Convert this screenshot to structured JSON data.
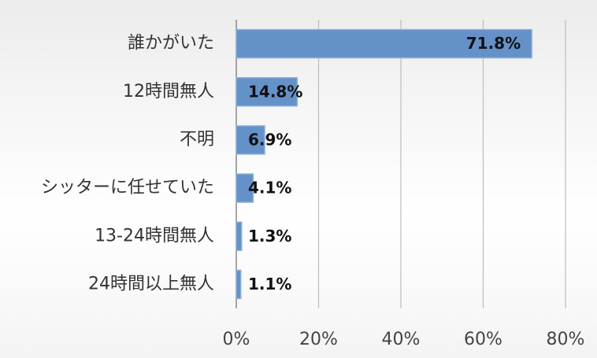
{
  "chart_data": {
    "type": "barh",
    "categories": [
      "誰かがいた",
      "12時間無人",
      "不明",
      "シッターに任せていた",
      "13-24時間無人",
      "24時間以上無人"
    ],
    "values": [
      71.8,
      14.8,
      6.9,
      4.1,
      1.3,
      1.1
    ],
    "value_labels": [
      "71.8%",
      "14.8%",
      "6.9%",
      "4.1%",
      "1.3%",
      "1.1%"
    ],
    "color": "#6591c9",
    "xlim": [
      0,
      80
    ],
    "xticks": [
      {
        "value": 0,
        "label": "0%"
      },
      {
        "value": 20,
        "label": "20%"
      },
      {
        "value": 40,
        "label": "40%"
      },
      {
        "value": 60,
        "label": "60%"
      },
      {
        "value": 80,
        "label": "80%"
      }
    ],
    "grid": true
  }
}
